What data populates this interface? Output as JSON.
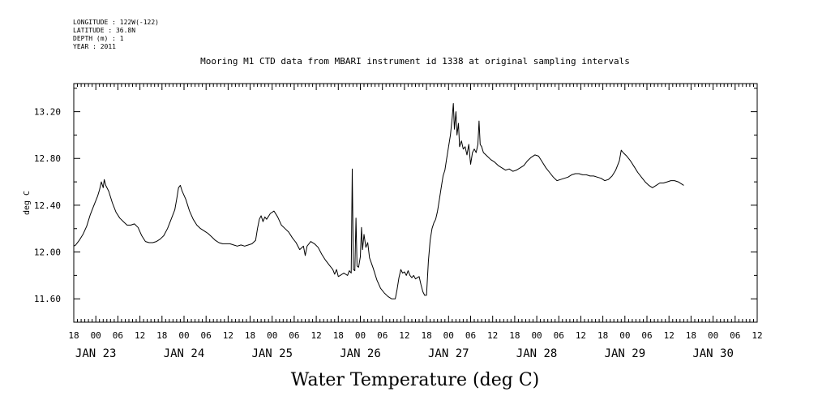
{
  "meta": {
    "longitude": "LONGITUDE : 122W(-122)",
    "latitude": "LATITUDE : 36.8N",
    "depth": "DEPTH (m) : 1",
    "year": "YEAR : 2011"
  },
  "chart_data": {
    "type": "line",
    "title": "Mooring M1 CTD data from MBARI instrument id 1338 at original sampling intervals",
    "xlabel": "Water Temperature (deg C)",
    "ylabel": "deg C",
    "ylim": [
      11.4,
      13.44
    ],
    "yticks": [
      "11.60",
      "12.00",
      "12.40",
      "12.80",
      "13.20"
    ],
    "x_unit": "hours since JAN 22 18:00",
    "xlim": [
      0,
      186
    ],
    "x_hour_ticks": [
      "18",
      "00",
      "06",
      "12",
      "18",
      "00",
      "06",
      "12",
      "18",
      "00",
      "06",
      "12",
      "18",
      "00",
      "06",
      "12",
      "18",
      "00",
      "06",
      "12",
      "18",
      "00",
      "06",
      "12",
      "18",
      "00",
      "06",
      "12",
      "18",
      "00",
      "06",
      "12"
    ],
    "x_day_labels": [
      {
        "label": "JAN 23",
        "at": 6
      },
      {
        "label": "JAN 24",
        "at": 30
      },
      {
        "label": "JAN 25",
        "at": 54
      },
      {
        "label": "JAN 26",
        "at": 78
      },
      {
        "label": "JAN 27",
        "at": 102
      },
      {
        "label": "JAN 28",
        "at": 126
      },
      {
        "label": "JAN 29",
        "at": 150
      },
      {
        "label": "JAN 30",
        "at": 174
      }
    ],
    "series": [
      {
        "name": "",
        "color": "#000000",
        "points": [
          [
            0.0,
            12.05
          ],
          [
            0.5,
            12.06
          ],
          [
            1.5,
            12.1
          ],
          [
            2.5,
            12.15
          ],
          [
            3.5,
            12.22
          ],
          [
            4.5,
            12.32
          ],
          [
            5.5,
            12.4
          ],
          [
            6.5,
            12.48
          ],
          [
            7.0,
            12.53
          ],
          [
            7.5,
            12.6
          ],
          [
            8.0,
            12.55
          ],
          [
            8.3,
            12.62
          ],
          [
            8.7,
            12.57
          ],
          [
            9.5,
            12.52
          ],
          [
            10.5,
            12.42
          ],
          [
            11.5,
            12.34
          ],
          [
            12.5,
            12.29
          ],
          [
            13.5,
            12.26
          ],
          [
            14.5,
            12.23
          ],
          [
            15.5,
            12.23
          ],
          [
            16.5,
            12.24
          ],
          [
            17.5,
            12.21
          ],
          [
            18.5,
            12.14
          ],
          [
            19.5,
            12.09
          ],
          [
            20.5,
            12.08
          ],
          [
            21.5,
            12.08
          ],
          [
            22.5,
            12.09
          ],
          [
            23.5,
            12.11
          ],
          [
            24.5,
            12.14
          ],
          [
            25.5,
            12.2
          ],
          [
            26.5,
            12.28
          ],
          [
            27.5,
            12.36
          ],
          [
            28.0,
            12.45
          ],
          [
            28.5,
            12.55
          ],
          [
            29.0,
            12.57
          ],
          [
            29.5,
            12.52
          ],
          [
            30.5,
            12.45
          ],
          [
            31.5,
            12.35
          ],
          [
            32.5,
            12.28
          ],
          [
            33.5,
            12.23
          ],
          [
            34.5,
            12.2
          ],
          [
            35.5,
            12.18
          ],
          [
            36.5,
            12.16
          ],
          [
            37.5,
            12.13
          ],
          [
            38.5,
            12.1
          ],
          [
            39.5,
            12.08
          ],
          [
            40.5,
            12.07
          ],
          [
            41.5,
            12.07
          ],
          [
            42.5,
            12.07
          ],
          [
            43.5,
            12.06
          ],
          [
            44.5,
            12.05
          ],
          [
            45.5,
            12.06
          ],
          [
            46.5,
            12.05
          ],
          [
            47.5,
            12.06
          ],
          [
            48.5,
            12.07
          ],
          [
            49.5,
            12.1
          ],
          [
            50.0,
            12.2
          ],
          [
            50.5,
            12.28
          ],
          [
            51.0,
            12.31
          ],
          [
            51.5,
            12.26
          ],
          [
            52.0,
            12.3
          ],
          [
            52.5,
            12.28
          ],
          [
            53.5,
            12.33
          ],
          [
            54.5,
            12.35
          ],
          [
            55.5,
            12.3
          ],
          [
            56.5,
            12.23
          ],
          [
            57.5,
            12.2
          ],
          [
            58.5,
            12.17
          ],
          [
            59.5,
            12.12
          ],
          [
            60.5,
            12.08
          ],
          [
            61.5,
            12.02
          ],
          [
            62.5,
            12.05
          ],
          [
            63.0,
            11.97
          ],
          [
            63.5,
            12.05
          ],
          [
            64.5,
            12.09
          ],
          [
            65.5,
            12.07
          ],
          [
            66.5,
            12.04
          ],
          [
            67.5,
            11.98
          ],
          [
            68.5,
            11.93
          ],
          [
            69.5,
            11.89
          ],
          [
            70.5,
            11.85
          ],
          [
            71.0,
            11.81
          ],
          [
            71.5,
            11.85
          ],
          [
            72.0,
            11.79
          ],
          [
            72.5,
            11.8
          ],
          [
            73.5,
            11.82
          ],
          [
            74.5,
            11.8
          ],
          [
            75.0,
            11.84
          ],
          [
            75.5,
            11.82
          ],
          [
            75.8,
            12.71
          ],
          [
            76.1,
            11.85
          ],
          [
            76.5,
            11.84
          ],
          [
            76.8,
            12.29
          ],
          [
            77.1,
            11.88
          ],
          [
            77.5,
            11.87
          ],
          [
            78.0,
            11.96
          ],
          [
            78.3,
            12.21
          ],
          [
            78.6,
            12.02
          ],
          [
            79.0,
            12.15
          ],
          [
            79.5,
            12.04
          ],
          [
            80.0,
            12.08
          ],
          [
            80.5,
            11.95
          ],
          [
            81.5,
            11.86
          ],
          [
            82.5,
            11.76
          ],
          [
            83.5,
            11.69
          ],
          [
            84.5,
            11.65
          ],
          [
            85.5,
            11.62
          ],
          [
            86.5,
            11.6
          ],
          [
            87.5,
            11.6
          ],
          [
            88.0,
            11.68
          ],
          [
            88.5,
            11.78
          ],
          [
            89.0,
            11.85
          ],
          [
            89.5,
            11.82
          ],
          [
            90.0,
            11.83
          ],
          [
            90.5,
            11.8
          ],
          [
            91.0,
            11.84
          ],
          [
            91.5,
            11.8
          ],
          [
            92.0,
            11.78
          ],
          [
            92.5,
            11.8
          ],
          [
            93.0,
            11.77
          ],
          [
            93.5,
            11.78
          ],
          [
            94.0,
            11.79
          ],
          [
            94.5,
            11.72
          ],
          [
            95.0,
            11.66
          ],
          [
            95.5,
            11.63
          ],
          [
            96.0,
            11.63
          ],
          [
            96.5,
            11.92
          ],
          [
            97.0,
            12.1
          ],
          [
            97.5,
            12.2
          ],
          [
            98.0,
            12.25
          ],
          [
            98.5,
            12.28
          ],
          [
            99.0,
            12.35
          ],
          [
            99.5,
            12.45
          ],
          [
            100.0,
            12.55
          ],
          [
            100.5,
            12.65
          ],
          [
            101.0,
            12.7
          ],
          [
            101.5,
            12.8
          ],
          [
            102.0,
            12.9
          ],
          [
            102.5,
            13.0
          ],
          [
            103.0,
            13.15
          ],
          [
            103.3,
            13.27
          ],
          [
            103.6,
            13.05
          ],
          [
            104.0,
            13.2
          ],
          [
            104.3,
            13.0
          ],
          [
            104.7,
            13.1
          ],
          [
            105.0,
            12.9
          ],
          [
            105.5,
            12.95
          ],
          [
            106.0,
            12.88
          ],
          [
            106.5,
            12.9
          ],
          [
            107.0,
            12.83
          ],
          [
            107.5,
            12.92
          ],
          [
            108.0,
            12.75
          ],
          [
            108.5,
            12.85
          ],
          [
            109.0,
            12.88
          ],
          [
            109.5,
            12.85
          ],
          [
            110.0,
            12.92
          ],
          [
            110.3,
            13.12
          ],
          [
            110.6,
            12.92
          ],
          [
            111.0,
            12.9
          ],
          [
            111.5,
            12.85
          ],
          [
            112.5,
            12.82
          ],
          [
            113.5,
            12.79
          ],
          [
            114.5,
            12.77
          ],
          [
            115.5,
            12.74
          ],
          [
            116.5,
            12.72
          ],
          [
            117.5,
            12.7
          ],
          [
            118.5,
            12.71
          ],
          [
            119.5,
            12.69
          ],
          [
            120.5,
            12.7
          ],
          [
            121.5,
            12.72
          ],
          [
            122.5,
            12.74
          ],
          [
            123.5,
            12.78
          ],
          [
            124.5,
            12.81
          ],
          [
            125.5,
            12.83
          ],
          [
            126.5,
            12.82
          ],
          [
            127.5,
            12.77
          ],
          [
            128.5,
            12.72
          ],
          [
            129.5,
            12.68
          ],
          [
            130.5,
            12.64
          ],
          [
            131.5,
            12.61
          ],
          [
            132.5,
            12.62
          ],
          [
            133.5,
            12.63
          ],
          [
            134.5,
            12.64
          ],
          [
            135.5,
            12.66
          ],
          [
            136.5,
            12.67
          ],
          [
            137.5,
            12.67
          ],
          [
            138.5,
            12.66
          ],
          [
            139.5,
            12.66
          ],
          [
            140.5,
            12.65
          ],
          [
            141.5,
            12.65
          ],
          [
            142.5,
            12.64
          ],
          [
            143.5,
            12.63
          ],
          [
            144.5,
            12.61
          ],
          [
            145.5,
            12.62
          ],
          [
            146.5,
            12.65
          ],
          [
            147.5,
            12.7
          ],
          [
            148.5,
            12.78
          ],
          [
            149.0,
            12.87
          ],
          [
            149.5,
            12.85
          ],
          [
            150.5,
            12.82
          ],
          [
            151.5,
            12.78
          ],
          [
            152.5,
            12.73
          ],
          [
            153.5,
            12.68
          ],
          [
            154.5,
            12.64
          ],
          [
            155.5,
            12.6
          ],
          [
            156.5,
            12.57
          ],
          [
            157.5,
            12.55
          ],
          [
            158.5,
            12.57
          ],
          [
            159.5,
            12.59
          ],
          [
            160.5,
            12.59
          ],
          [
            161.5,
            12.6
          ],
          [
            162.5,
            12.61
          ],
          [
            163.5,
            12.61
          ],
          [
            164.5,
            12.6
          ],
          [
            165.5,
            12.58
          ],
          [
            166.0,
            12.57
          ]
        ]
      }
    ]
  }
}
